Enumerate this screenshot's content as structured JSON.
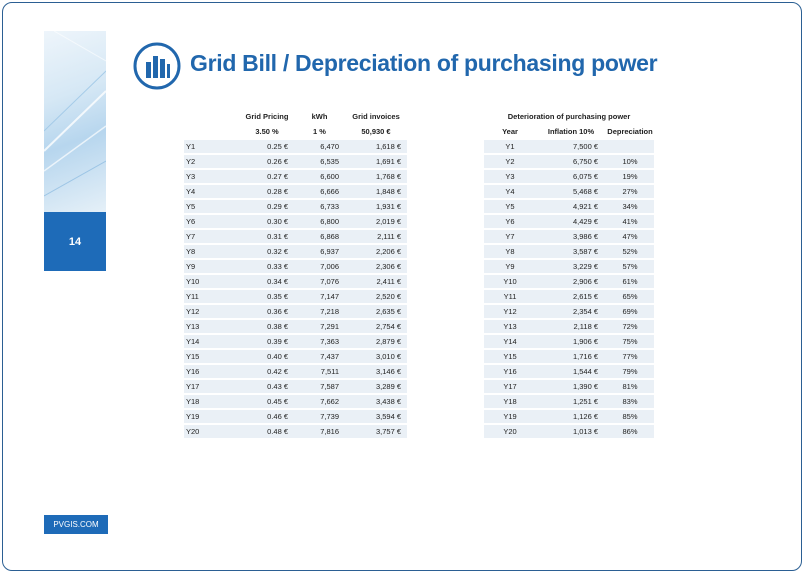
{
  "page": {
    "number": "14",
    "footer": "PVGIS.COM"
  },
  "title": "Grid Bill / Depreciation of purchasing power",
  "colors": {
    "accent": "#1e6bb8",
    "title": "#2167ad",
    "row_bg": "#eaf0f6"
  },
  "icons": {
    "logo": "bar-chart-icon"
  },
  "grid_table": {
    "headers": [
      "Grid Pricing",
      "kWh",
      "Grid invoices"
    ],
    "subheaders": [
      "3.50 %",
      "1 %",
      "50,930 €"
    ],
    "rows": [
      [
        "Y1",
        "0.25 €",
        "6,470",
        "1,618 €"
      ],
      [
        "Y2",
        "0.26 €",
        "6,535",
        "1,691 €"
      ],
      [
        "Y3",
        "0.27 €",
        "6,600",
        "1,768 €"
      ],
      [
        "Y4",
        "0.28 €",
        "6,666",
        "1,848 €"
      ],
      [
        "Y5",
        "0.29 €",
        "6,733",
        "1,931 €"
      ],
      [
        "Y6",
        "0.30 €",
        "6,800",
        "2,019 €"
      ],
      [
        "Y7",
        "0.31 €",
        "6,868",
        "2,111 €"
      ],
      [
        "Y8",
        "0.32 €",
        "6,937",
        "2,206 €"
      ],
      [
        "Y9",
        "0.33 €",
        "7,006",
        "2,306 €"
      ],
      [
        "Y10",
        "0.34 €",
        "7,076",
        "2,411 €"
      ],
      [
        "Y11",
        "0.35 €",
        "7,147",
        "2,520 €"
      ],
      [
        "Y12",
        "0.36 €",
        "7,218",
        "2,635 €"
      ],
      [
        "Y13",
        "0.38 €",
        "7,291",
        "2,754 €"
      ],
      [
        "Y14",
        "0.39 €",
        "7,363",
        "2,879 €"
      ],
      [
        "Y15",
        "0.40 €",
        "7,437",
        "3,010 €"
      ],
      [
        "Y16",
        "0.42 €",
        "7,511",
        "3,146 €"
      ],
      [
        "Y17",
        "0.43 €",
        "7,587",
        "3,289 €"
      ],
      [
        "Y18",
        "0.45 €",
        "7,662",
        "3,438 €"
      ],
      [
        "Y19",
        "0.46 €",
        "7,739",
        "3,594 €"
      ],
      [
        "Y20",
        "0.48 €",
        "7,816",
        "3,757 €"
      ]
    ]
  },
  "deterioration_table": {
    "title": "Deterioration of purchasing power",
    "headers": [
      "Year",
      "Inflation 10%",
      "Depreciation"
    ],
    "rows": [
      [
        "Y1",
        "7,500 €",
        ""
      ],
      [
        "Y2",
        "6,750 €",
        "10%"
      ],
      [
        "Y3",
        "6,075 €",
        "19%"
      ],
      [
        "Y4",
        "5,468 €",
        "27%"
      ],
      [
        "Y5",
        "4,921 €",
        "34%"
      ],
      [
        "Y6",
        "4,429 €",
        "41%"
      ],
      [
        "Y7",
        "3,986 €",
        "47%"
      ],
      [
        "Y8",
        "3,587 €",
        "52%"
      ],
      [
        "Y9",
        "3,229 €",
        "57%"
      ],
      [
        "Y10",
        "2,906 €",
        "61%"
      ],
      [
        "Y11",
        "2,615 €",
        "65%"
      ],
      [
        "Y12",
        "2,354 €",
        "69%"
      ],
      [
        "Y13",
        "2,118 €",
        "72%"
      ],
      [
        "Y14",
        "1,906 €",
        "75%"
      ],
      [
        "Y15",
        "1,716 €",
        "77%"
      ],
      [
        "Y16",
        "1,544 €",
        "79%"
      ],
      [
        "Y17",
        "1,390 €",
        "81%"
      ],
      [
        "Y18",
        "1,251 €",
        "83%"
      ],
      [
        "Y19",
        "1,126 €",
        "85%"
      ],
      [
        "Y20",
        "1,013 €",
        "86%"
      ]
    ]
  }
}
